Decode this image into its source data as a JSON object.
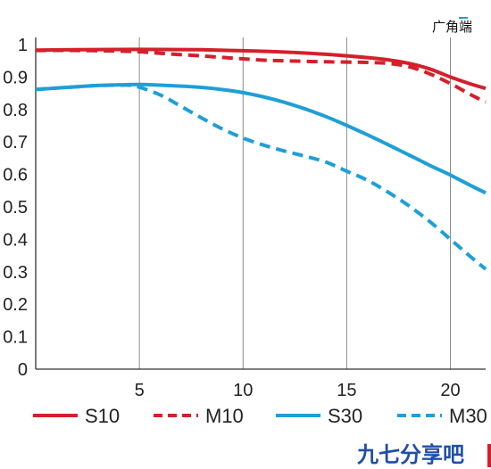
{
  "chart_data": {
    "type": "line",
    "annotation": "广角端",
    "x_ticks": [
      5,
      10,
      15,
      20
    ],
    "y_ticks": [
      "0",
      "0.1",
      "0.2",
      "0.3",
      "0.4",
      "0.5",
      "0.6",
      "0.7",
      "0.8",
      "0.9",
      "1"
    ],
    "xlim": [
      0,
      21.7
    ],
    "ylim": [
      0,
      1
    ],
    "grid": "vertical at x ticks",
    "legend_position": "bottom",
    "series": [
      {
        "name": "S10",
        "color": "#d4202b",
        "style": "solid",
        "x": [
          0,
          2,
          4,
          6,
          8,
          10,
          12,
          14,
          16,
          17,
          18,
          19,
          20,
          21,
          21.7
        ],
        "y": [
          0.983,
          0.984,
          0.985,
          0.985,
          0.984,
          0.981,
          0.977,
          0.97,
          0.96,
          0.953,
          0.942,
          0.925,
          0.9,
          0.878,
          0.865
        ]
      },
      {
        "name": "M10",
        "color": "#d4202b",
        "style": "dashed",
        "x": [
          0,
          2,
          4,
          5,
          6,
          8,
          10,
          11,
          12,
          14,
          16,
          17,
          18,
          19,
          20,
          21,
          21.7
        ],
        "y": [
          0.982,
          0.982,
          0.98,
          0.978,
          0.973,
          0.965,
          0.956,
          0.952,
          0.95,
          0.947,
          0.945,
          0.942,
          0.932,
          0.91,
          0.88,
          0.845,
          0.823
        ]
      },
      {
        "name": "S30",
        "color": "#1e9fd8",
        "style": "solid",
        "x": [
          0,
          1,
          2,
          3,
          4,
          5,
          6,
          8,
          10,
          12,
          14,
          16,
          18,
          19,
          20,
          21,
          21.7
        ],
        "y": [
          0.862,
          0.866,
          0.87,
          0.874,
          0.876,
          0.877,
          0.875,
          0.868,
          0.852,
          0.822,
          0.778,
          0.722,
          0.66,
          0.628,
          0.598,
          0.565,
          0.543
        ]
      },
      {
        "name": "M30",
        "color": "#1e9fd8",
        "style": "dashed",
        "x": [
          0,
          1,
          2,
          3,
          4,
          4.8,
          6,
          7,
          8,
          9,
          10,
          11,
          12,
          13,
          14,
          15,
          16,
          17,
          18,
          19,
          20,
          21,
          21.7
        ],
        "y": [
          0.862,
          0.866,
          0.87,
          0.874,
          0.875,
          0.872,
          0.845,
          0.81,
          0.774,
          0.74,
          0.712,
          0.69,
          0.672,
          0.656,
          0.638,
          0.61,
          0.582,
          0.545,
          0.503,
          0.455,
          0.4,
          0.345,
          0.308
        ]
      }
    ]
  },
  "watermark": {
    "text": "九七分享吧"
  }
}
